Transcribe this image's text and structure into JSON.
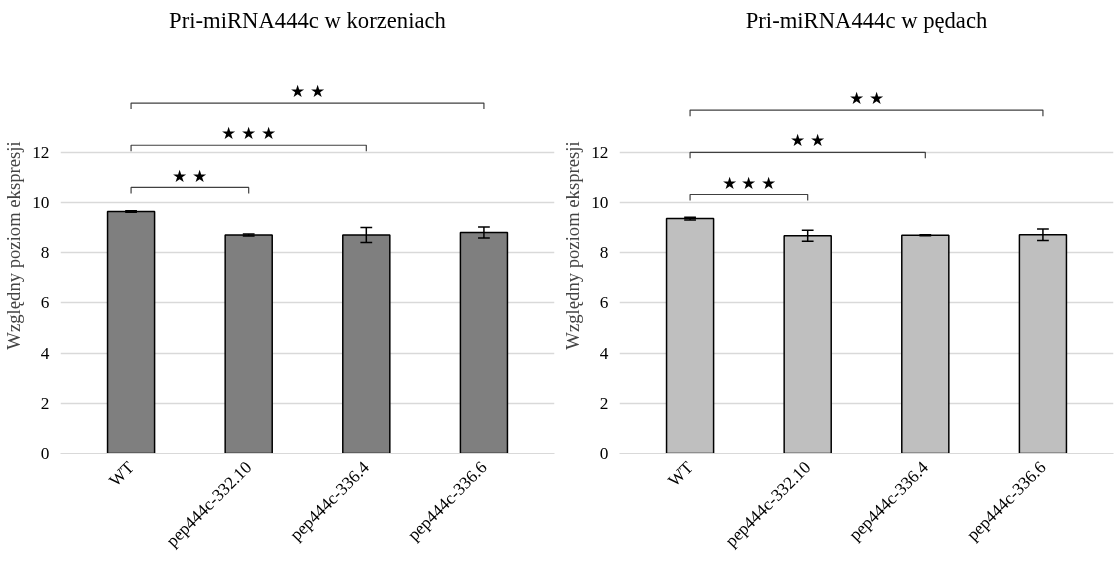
{
  "chart_data": [
    {
      "type": "bar",
      "title": "Pri-miRNA444c w korzeniach",
      "ylabel": "Względny poziom ekspresji",
      "categories": [
        "WT",
        "pep444c-332.10",
        "pep444c-336.4",
        "pep444c-336.6"
      ],
      "values": [
        9.63,
        8.7,
        8.7,
        8.8
      ],
      "errors": [
        0.03,
        0.04,
        0.3,
        0.22
      ],
      "color": "#7f7f7f",
      "ylim": [
        0,
        12
      ],
      "yticks": [
        0,
        2,
        4,
        6,
        8,
        10,
        12
      ],
      "grid": "y",
      "annotations": [
        "★ ★",
        "★ ★ ★",
        "★ ★"
      ]
    },
    {
      "type": "bar",
      "title": "Pri-miRNA444c w pędach",
      "ylabel": "Względny poziom ekspresji",
      "categories": [
        "WT",
        "pep444c-332.10",
        "pep444c-336.4",
        "pep444c-336.6"
      ],
      "values": [
        9.35,
        8.67,
        8.69,
        8.71
      ],
      "errors": [
        0.05,
        0.22,
        0.02,
        0.23
      ],
      "color": "#bfbfbf",
      "ylim": [
        0,
        12
      ],
      "yticks": [
        0,
        2,
        4,
        6,
        8,
        10,
        12
      ],
      "grid": "y",
      "annotations": [
        "★ ★ ★",
        "★ ★",
        "★ ★"
      ]
    }
  ]
}
